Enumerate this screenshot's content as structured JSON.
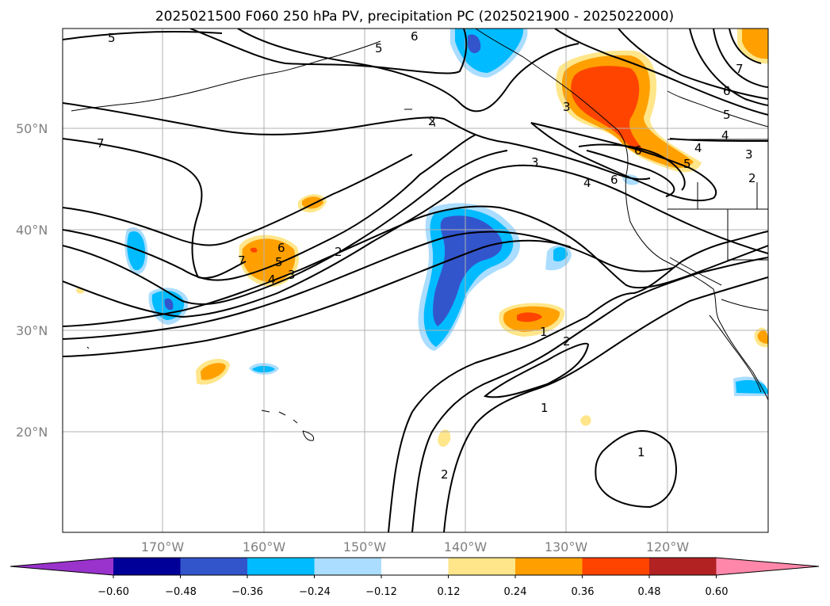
{
  "title": "2025021500 F060 250 hPa PV, precipitation PC (2025021900 - 2025022000)",
  "lat_ticks": [
    "50°N",
    "40°N",
    "30°N",
    "20°N"
  ],
  "lon_ticks": [
    "170°W",
    "160°W",
    "150°W",
    "140°W",
    "130°W",
    "120°W"
  ],
  "colorbar": {
    "ticks": [
      "−0.60",
      "−0.48",
      "−0.36",
      "−0.24",
      "−0.12",
      "0.12",
      "0.24",
      "0.36",
      "0.48",
      "0.60"
    ],
    "colors": [
      "#9933cc",
      "#000099",
      "#3355cc",
      "#00bbff",
      "#aaddff",
      "#ffffff",
      "#ffe68a",
      "#ffa000",
      "#ff4400",
      "#b22222",
      "#ff88aa"
    ]
  },
  "contour_labels": [
    "5",
    "6",
    "5",
    "7",
    "7",
    "6",
    "5",
    "4",
    "3",
    "2",
    "2",
    "3",
    "4",
    "6",
    "3",
    "4",
    "5",
    "6",
    "7",
    "6",
    "5",
    "4",
    "3",
    "2",
    "1",
    "2",
    "1",
    "1",
    "2"
  ]
}
